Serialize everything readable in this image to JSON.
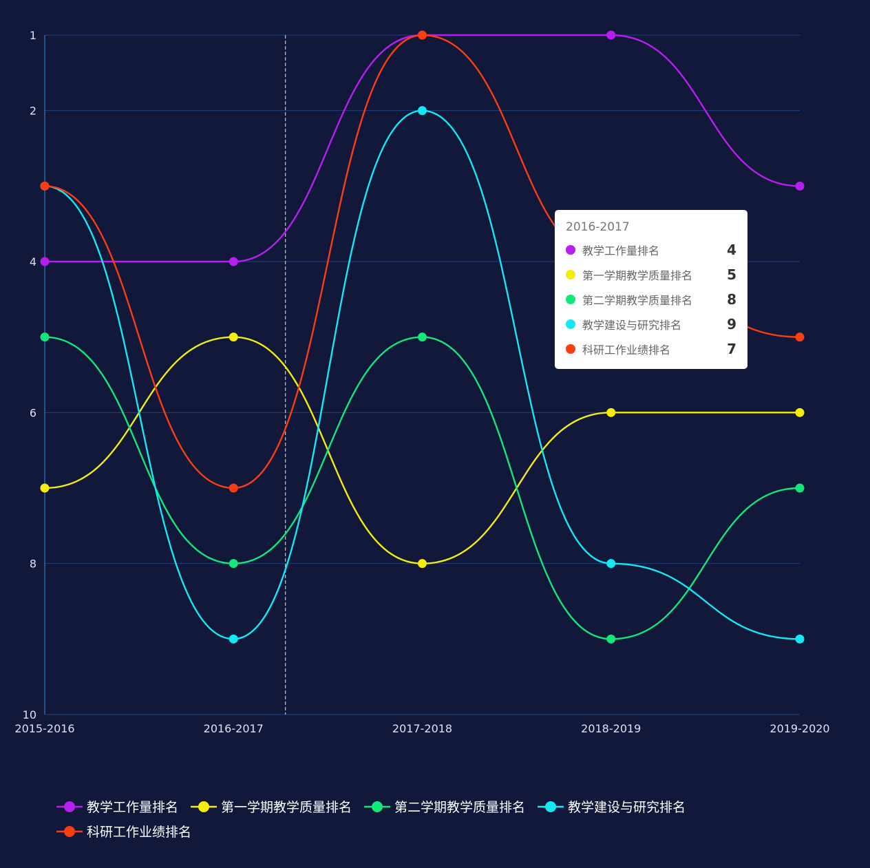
{
  "chart_data": {
    "type": "line",
    "smooth": true,
    "categories": [
      "2015-2016",
      "2016-2017",
      "2017-2018",
      "2018-2019",
      "2019-2020"
    ],
    "y_ticks": [
      "1",
      "2",
      "4",
      "6",
      "8",
      "10"
    ],
    "ylim": [
      1,
      10
    ],
    "y_inverted": true,
    "grid": true,
    "legend_position": "bottom",
    "series": [
      {
        "name": "教学工作量排名",
        "color": "#b61ff0",
        "values": [
          4,
          4,
          1,
          1,
          3
        ]
      },
      {
        "name": "第一学期教学质量排名",
        "color": "#f5ee0a",
        "values": [
          7,
          5,
          8,
          6,
          6
        ]
      },
      {
        "name": "第二学期教学质量排名",
        "color": "#12e878",
        "values": [
          5,
          8,
          5,
          9,
          7
        ]
      },
      {
        "name": "教学建设与研究排名",
        "color": "#12eaf3",
        "values": [
          3,
          9,
          2,
          8,
          9
        ]
      },
      {
        "name": "科研工作业绩排名",
        "color": "#fb3d12",
        "values": [
          3,
          7,
          1,
          4,
          5
        ]
      }
    ],
    "tooltip": {
      "title": "2016-2017",
      "items": [
        {
          "name": "教学工作量排名",
          "value": "4"
        },
        {
          "name": "第一学期教学质量排名",
          "value": "5"
        },
        {
          "name": "第二学期教学质量排名",
          "value": "8"
        },
        {
          "name": "教学建设与研究排名",
          "value": "9"
        },
        {
          "name": "科研工作业绩排名",
          "value": "7"
        }
      ]
    }
  }
}
